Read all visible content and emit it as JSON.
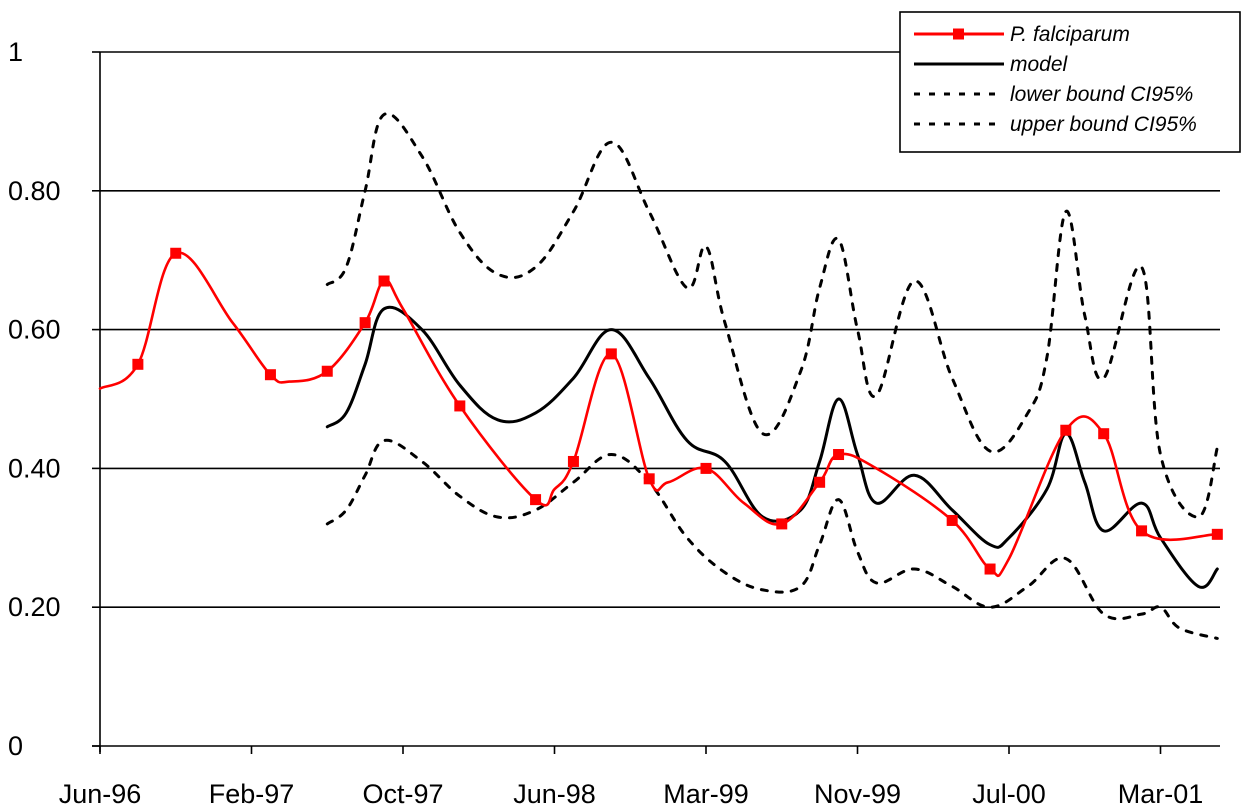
{
  "chart_data": {
    "type": "line",
    "title": "",
    "xlabel": "",
    "ylabel": "",
    "xlim": [
      "1996-06",
      "2001-06"
    ],
    "ylim": [
      0,
      1
    ],
    "grid": true,
    "legend_position": "top-right",
    "x_ticks": [
      "Jun-96",
      "Feb-97",
      "Oct-97",
      "Jun-98",
      "Mar-99",
      "Nov-99",
      "Jul-00",
      "Mar-01"
    ],
    "y_ticks": [
      "0",
      "0.20",
      "0.40",
      "0.60",
      "0.80",
      "1"
    ],
    "y_tick_values": [
      0,
      0.2,
      0.4,
      0.6,
      0.8,
      1.0
    ],
    "series": [
      {
        "name": "P. falciparum",
        "color": "#ff0000",
        "marker": "square",
        "points": [
          [
            "1996-06",
            0.515
          ],
          [
            "1996-08",
            0.55
          ],
          [
            "1996-10",
            0.71
          ],
          [
            "1997-01",
            0.61
          ],
          [
            "1997-03",
            0.535
          ],
          [
            "1997-04",
            0.525
          ],
          [
            "1997-06",
            0.54
          ],
          [
            "1997-08",
            0.61
          ],
          [
            "1997-09",
            0.67
          ],
          [
            "1997-10",
            0.63
          ],
          [
            "1998-01",
            0.49
          ],
          [
            "1998-05",
            0.355
          ],
          [
            "1998-06",
            0.37
          ],
          [
            "1998-07",
            0.41
          ],
          [
            "1998-09",
            0.565
          ],
          [
            "1998-11",
            0.385
          ],
          [
            "1998-12",
            0.38
          ],
          [
            "1999-02",
            0.4
          ],
          [
            "1999-04",
            0.35
          ],
          [
            "1999-06",
            0.32
          ],
          [
            "1999-08",
            0.38
          ],
          [
            "1999-09",
            0.42
          ],
          [
            "1999-11",
            0.4
          ],
          [
            "2000-03",
            0.325
          ],
          [
            "2000-05",
            0.255
          ],
          [
            "2000-06",
            0.27
          ],
          [
            "2000-09",
            0.455
          ],
          [
            "2000-11",
            0.45
          ],
          [
            "2001-01",
            0.31
          ],
          [
            "2001-05",
            0.305
          ]
        ],
        "marked_points": [
          [
            "1996-08",
            0.55
          ],
          [
            "1996-10",
            0.71
          ],
          [
            "1997-03",
            0.535
          ],
          [
            "1997-06",
            0.54
          ],
          [
            "1997-08",
            0.61
          ],
          [
            "1997-09",
            0.67
          ],
          [
            "1998-01",
            0.49
          ],
          [
            "1998-05",
            0.355
          ],
          [
            "1998-07",
            0.41
          ],
          [
            "1998-09",
            0.565
          ],
          [
            "1998-11",
            0.385
          ],
          [
            "1999-02",
            0.4
          ],
          [
            "1999-06",
            0.32
          ],
          [
            "1999-08",
            0.38
          ],
          [
            "1999-09",
            0.42
          ],
          [
            "2000-03",
            0.325
          ],
          [
            "2000-05",
            0.255
          ],
          [
            "2000-09",
            0.455
          ],
          [
            "2000-11",
            0.45
          ],
          [
            "2001-01",
            0.31
          ],
          [
            "2001-05",
            0.305
          ]
        ]
      },
      {
        "name": "model",
        "color": "#000000",
        "dash": "solid",
        "points": [
          [
            "1997-06",
            0.46
          ],
          [
            "1997-07",
            0.48
          ],
          [
            "1997-08",
            0.55
          ],
          [
            "1997-09",
            0.63
          ],
          [
            "1997-11",
            0.6
          ],
          [
            "1998-01",
            0.52
          ],
          [
            "1998-03",
            0.47
          ],
          [
            "1998-05",
            0.48
          ],
          [
            "1998-07",
            0.53
          ],
          [
            "1998-09",
            0.6
          ],
          [
            "1998-11",
            0.53
          ],
          [
            "1999-01",
            0.44
          ],
          [
            "1999-03",
            0.41
          ],
          [
            "1999-05",
            0.33
          ],
          [
            "1999-07",
            0.34
          ],
          [
            "1999-08",
            0.41
          ],
          [
            "1999-09",
            0.5
          ],
          [
            "1999-10",
            0.42
          ],
          [
            "1999-11",
            0.35
          ],
          [
            "2000-01",
            0.39
          ],
          [
            "2000-03",
            0.34
          ],
          [
            "2000-05",
            0.29
          ],
          [
            "2000-06",
            0.3
          ],
          [
            "2000-08",
            0.37
          ],
          [
            "2000-09",
            0.45
          ],
          [
            "2000-10",
            0.38
          ],
          [
            "2000-11",
            0.31
          ],
          [
            "2001-01",
            0.35
          ],
          [
            "2001-02",
            0.3
          ],
          [
            "2001-04",
            0.23
          ],
          [
            "2001-05",
            0.255
          ]
        ]
      },
      {
        "name": "lower bound CI95%",
        "color": "#000000",
        "dash": "dotted",
        "points": [
          [
            "1997-06",
            0.32
          ],
          [
            "1997-07",
            0.34
          ],
          [
            "1997-08",
            0.39
          ],
          [
            "1997-09",
            0.44
          ],
          [
            "1997-11",
            0.41
          ],
          [
            "1998-01",
            0.36
          ],
          [
            "1998-03",
            0.33
          ],
          [
            "1998-05",
            0.34
          ],
          [
            "1998-07",
            0.38
          ],
          [
            "1998-09",
            0.42
          ],
          [
            "1998-11",
            0.38
          ],
          [
            "1999-01",
            0.3
          ],
          [
            "1999-03",
            0.25
          ],
          [
            "1999-05",
            0.225
          ],
          [
            "1999-07",
            0.23
          ],
          [
            "1999-08",
            0.29
          ],
          [
            "1999-09",
            0.355
          ],
          [
            "1999-10",
            0.28
          ],
          [
            "1999-11",
            0.235
          ],
          [
            "2000-01",
            0.255
          ],
          [
            "2000-03",
            0.23
          ],
          [
            "2000-05",
            0.2
          ],
          [
            "2000-07",
            0.23
          ],
          [
            "2000-09",
            0.27
          ],
          [
            "2000-11",
            0.19
          ],
          [
            "2001-01",
            0.19
          ],
          [
            "2001-02",
            0.2
          ],
          [
            "2001-03",
            0.17
          ],
          [
            "2001-05",
            0.155
          ]
        ]
      },
      {
        "name": "upper bound CI95%",
        "color": "#000000",
        "dash": "dotted",
        "points": [
          [
            "1997-06",
            0.665
          ],
          [
            "1997-07",
            0.69
          ],
          [
            "1997-08",
            0.8
          ],
          [
            "1997-09",
            0.91
          ],
          [
            "1997-11",
            0.85
          ],
          [
            "1998-01",
            0.74
          ],
          [
            "1998-03",
            0.68
          ],
          [
            "1998-05",
            0.69
          ],
          [
            "1998-07",
            0.77
          ],
          [
            "1998-09",
            0.87
          ],
          [
            "1998-11",
            0.77
          ],
          [
            "1999-01",
            0.66
          ],
          [
            "1999-02",
            0.72
          ],
          [
            "1999-03",
            0.61
          ],
          [
            "1999-05",
            0.45
          ],
          [
            "1999-07",
            0.54
          ],
          [
            "1999-08",
            0.66
          ],
          [
            "1999-09",
            0.73
          ],
          [
            "1999-10",
            0.6
          ],
          [
            "1999-11",
            0.505
          ],
          [
            "2000-01",
            0.67
          ],
          [
            "2000-03",
            0.53
          ],
          [
            "2000-05",
            0.425
          ],
          [
            "2000-07",
            0.48
          ],
          [
            "2000-08",
            0.56
          ],
          [
            "2000-09",
            0.77
          ],
          [
            "2000-10",
            0.62
          ],
          [
            "2000-11",
            0.53
          ],
          [
            "2001-01",
            0.69
          ],
          [
            "2001-02",
            0.42
          ],
          [
            "2001-04",
            0.33
          ],
          [
            "2001-05",
            0.43
          ]
        ]
      }
    ]
  }
}
